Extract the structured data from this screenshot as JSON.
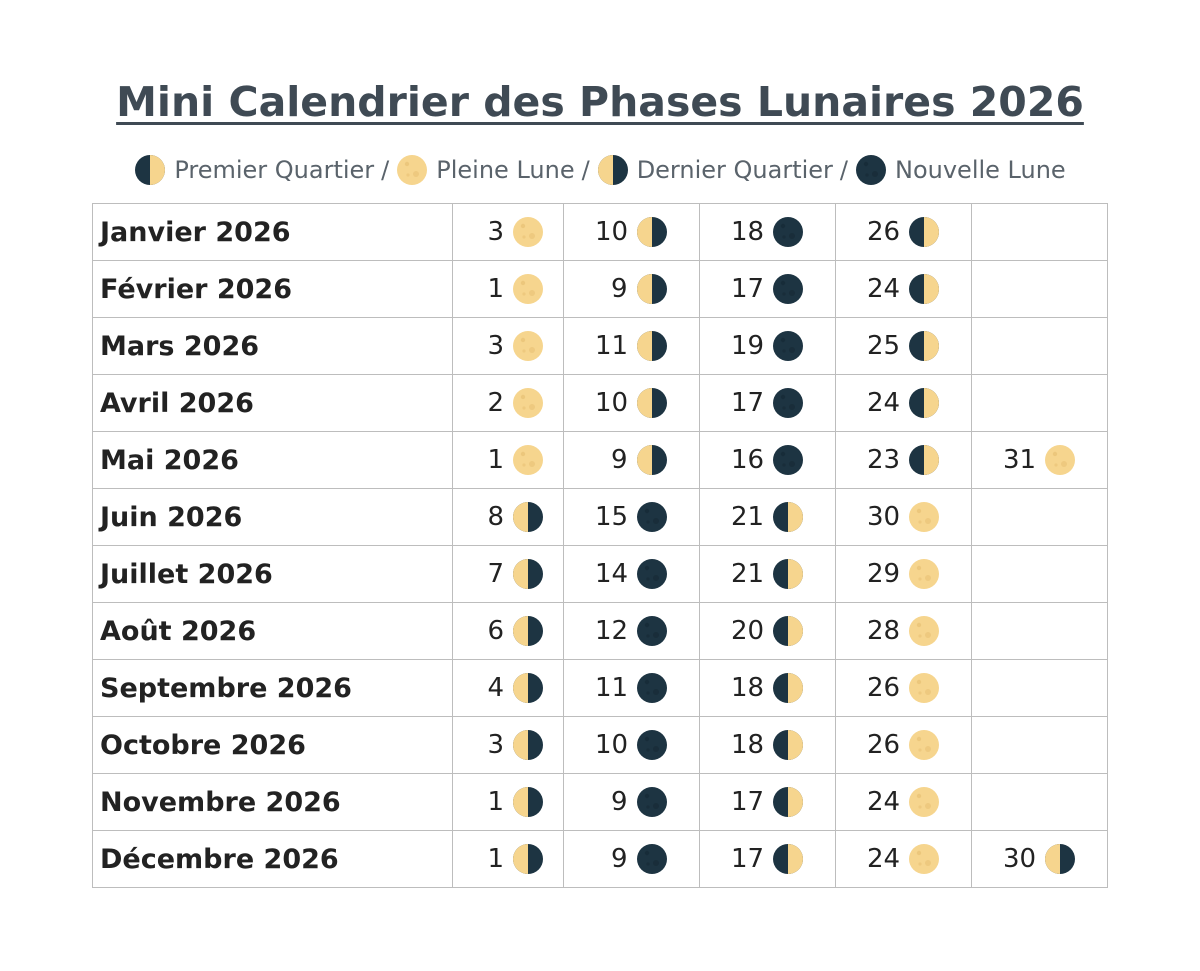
{
  "title": "Mini Calendrier des Phases Lunaires 2026",
  "legend": [
    {
      "icon": "first-quarter-moon-icon",
      "phase": "fq",
      "label": "Premier Quartier"
    },
    {
      "icon": "full-moon-icon",
      "phase": "full",
      "label": "Pleine Lune"
    },
    {
      "icon": "last-quarter-moon-icon",
      "phase": "lq",
      "label": "Dernier Quartier"
    },
    {
      "icon": "new-moon-icon",
      "phase": "new",
      "label": "Nouvelle Lune"
    }
  ],
  "separator": "/",
  "colors": {
    "moon_light": "#f6d58e",
    "moon_dark": "#1d3442",
    "border": "#bdbdbd",
    "title": "#3f4a54"
  },
  "months": [
    {
      "name": "Janvier 2026",
      "phases": [
        {
          "day": "3",
          "phase": "full"
        },
        {
          "day": "10",
          "phase": "lq"
        },
        {
          "day": "18",
          "phase": "new"
        },
        {
          "day": "26",
          "phase": "fq"
        }
      ]
    },
    {
      "name": "Février 2026",
      "phases": [
        {
          "day": "1",
          "phase": "full"
        },
        {
          "day": "9",
          "phase": "lq"
        },
        {
          "day": "17",
          "phase": "new"
        },
        {
          "day": "24",
          "phase": "fq"
        }
      ]
    },
    {
      "name": "Mars 2026",
      "phases": [
        {
          "day": "3",
          "phase": "full"
        },
        {
          "day": "11",
          "phase": "lq"
        },
        {
          "day": "19",
          "phase": "new"
        },
        {
          "day": "25",
          "phase": "fq"
        }
      ]
    },
    {
      "name": "Avril 2026",
      "phases": [
        {
          "day": "2",
          "phase": "full"
        },
        {
          "day": "10",
          "phase": "lq"
        },
        {
          "day": "17",
          "phase": "new"
        },
        {
          "day": "24",
          "phase": "fq"
        }
      ]
    },
    {
      "name": "Mai 2026",
      "phases": [
        {
          "day": "1",
          "phase": "full"
        },
        {
          "day": "9",
          "phase": "lq"
        },
        {
          "day": "16",
          "phase": "new"
        },
        {
          "day": "23",
          "phase": "fq"
        },
        {
          "day": "31",
          "phase": "full"
        }
      ]
    },
    {
      "name": "Juin 2026",
      "phases": [
        {
          "day": "8",
          "phase": "lq"
        },
        {
          "day": "15",
          "phase": "new"
        },
        {
          "day": "21",
          "phase": "fq"
        },
        {
          "day": "30",
          "phase": "full"
        }
      ]
    },
    {
      "name": "Juillet 2026",
      "phases": [
        {
          "day": "7",
          "phase": "lq"
        },
        {
          "day": "14",
          "phase": "new"
        },
        {
          "day": "21",
          "phase": "fq"
        },
        {
          "day": "29",
          "phase": "full"
        }
      ]
    },
    {
      "name": "Août 2026",
      "phases": [
        {
          "day": "6",
          "phase": "lq"
        },
        {
          "day": "12",
          "phase": "new"
        },
        {
          "day": "20",
          "phase": "fq"
        },
        {
          "day": "28",
          "phase": "full"
        }
      ]
    },
    {
      "name": "Septembre 2026",
      "phases": [
        {
          "day": "4",
          "phase": "lq"
        },
        {
          "day": "11",
          "phase": "new"
        },
        {
          "day": "18",
          "phase": "fq"
        },
        {
          "day": "26",
          "phase": "full"
        }
      ]
    },
    {
      "name": "Octobre 2026",
      "phases": [
        {
          "day": "3",
          "phase": "lq"
        },
        {
          "day": "10",
          "phase": "new"
        },
        {
          "day": "18",
          "phase": "fq"
        },
        {
          "day": "26",
          "phase": "full"
        }
      ]
    },
    {
      "name": "Novembre 2026",
      "phases": [
        {
          "day": "1",
          "phase": "lq"
        },
        {
          "day": "9",
          "phase": "new"
        },
        {
          "day": "17",
          "phase": "fq"
        },
        {
          "day": "24",
          "phase": "full"
        }
      ]
    },
    {
      "name": "Décembre 2026",
      "phases": [
        {
          "day": "1",
          "phase": "lq"
        },
        {
          "day": "9",
          "phase": "new"
        },
        {
          "day": "17",
          "phase": "fq"
        },
        {
          "day": "24",
          "phase": "full"
        },
        {
          "day": "30",
          "phase": "lq"
        }
      ]
    }
  ]
}
